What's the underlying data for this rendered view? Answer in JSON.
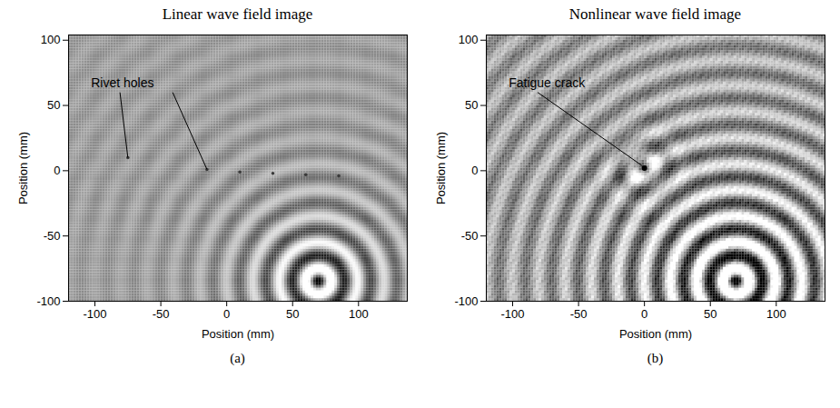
{
  "chart_data": [
    {
      "type": "wave_field",
      "title": "Linear wave field image",
      "caption": "(a)",
      "x_label": "Position (mm)",
      "y_label": "Position (mm)",
      "xlim": [
        -120,
        137
      ],
      "ylim": [
        -100,
        104
      ],
      "xticks": [
        -100,
        -50,
        0,
        50,
        100
      ],
      "yticks": [
        -100,
        -50,
        0,
        50,
        100
      ],
      "source": {
        "x": 70,
        "y": -85
      },
      "wavelength": 20,
      "rivet_holes": [
        {
          "x": -75,
          "y": 10
        },
        {
          "x": -15,
          "y": 1
        },
        {
          "x": 10,
          "y": -1
        },
        {
          "x": 35,
          "y": -2
        },
        {
          "x": 60,
          "y": -3
        },
        {
          "x": 85,
          "y": -4
        }
      ],
      "annotations": [
        {
          "text": "Rivet holes",
          "x": -103,
          "y": 67,
          "targets": [
            {
              "x": -75,
              "y": 10
            },
            {
              "x": -15,
              "y": 1
            }
          ]
        }
      ]
    },
    {
      "type": "wave_field",
      "title": "Nonlinear wave field image",
      "caption": "(b)",
      "x_label": "Position (mm)",
      "y_label": "Position (mm)",
      "xlim": [
        -120,
        137
      ],
      "ylim": [
        -100,
        104
      ],
      "xticks": [
        -100,
        -50,
        0,
        50,
        100
      ],
      "yticks": [
        -100,
        -50,
        0,
        50,
        100
      ],
      "source": {
        "x": 70,
        "y": -85
      },
      "wavelength": 20,
      "crack": {
        "x": 0,
        "y": 2
      },
      "annotations": [
        {
          "text": "Fatigue crack",
          "x": -103,
          "y": 67,
          "targets": [
            {
              "x": -2,
              "y": 4
            }
          ]
        }
      ]
    }
  ]
}
